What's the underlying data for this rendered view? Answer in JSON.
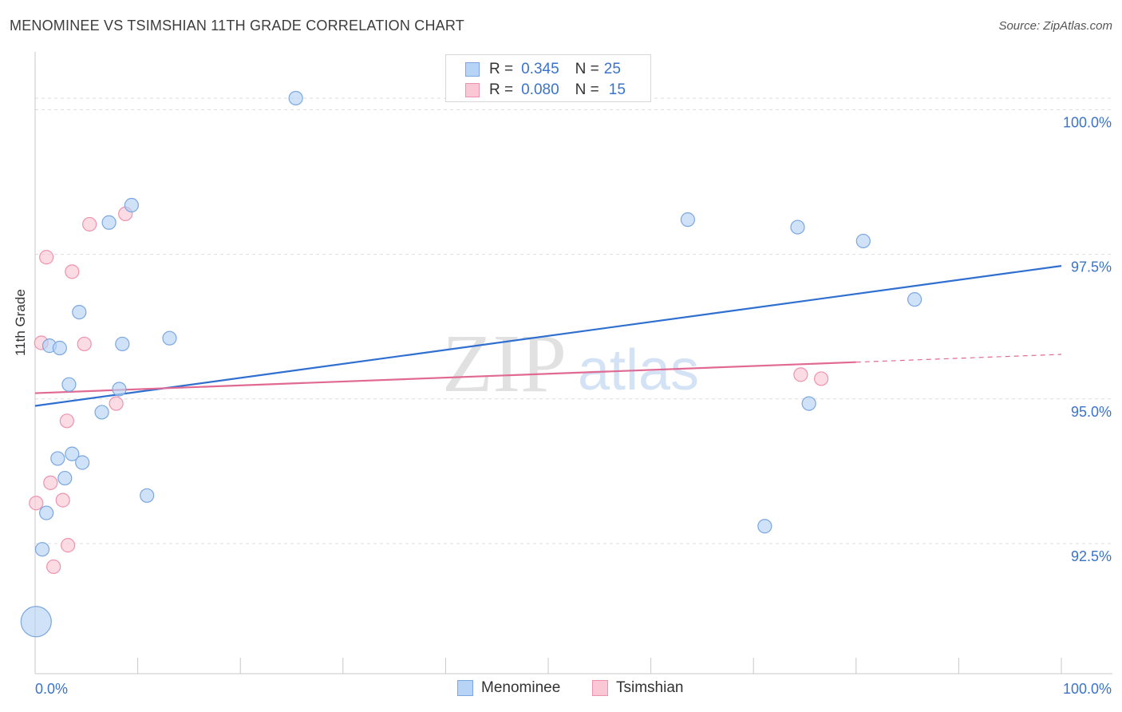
{
  "header": {
    "title": "MENOMINEE VS TSIMSHIAN 11TH GRADE CORRELATION CHART",
    "source": "Source: ZipAtlas.com"
  },
  "watermark": {
    "zip": "ZIP",
    "atlas": "atlas"
  },
  "legend": {
    "rows": [
      {
        "r_label": "R =",
        "r_value": "0.345",
        "n_label": "N =",
        "n_value": "25"
      },
      {
        "r_label": "R =",
        "r_value": "0.080",
        "n_label": "N =",
        "n_value": "15"
      }
    ]
  },
  "bottom_legend": {
    "items": [
      {
        "label": "Menominee"
      },
      {
        "label": "Tsimshian"
      }
    ]
  },
  "colors": {
    "menominee_fill": "#b7d3f5",
    "menominee_stroke": "#7ba7e0",
    "menominee_line": "#2f6fd0",
    "tsimshian_fill": "#f9c7d5",
    "tsimshian_stroke": "#ee93ad",
    "tsimshian_line": "#e06a93",
    "grid": "#dcdcdc",
    "tick_label": "#3b73c9"
  },
  "chart_data": {
    "type": "scatter",
    "title": "MENOMINEE VS TSIMSHIAN 11TH GRADE CORRELATION CHART",
    "xlabel": "",
    "ylabel": "11th Grade",
    "xlim": [
      0,
      100
    ],
    "ylim": [
      90.25,
      101.0
    ],
    "x_tick_labels": [
      {
        "value": 0,
        "label": "0.0%"
      },
      {
        "value": 100,
        "label": "100.0%"
      }
    ],
    "y_ticks": [
      {
        "value": 100.0,
        "label": "100.0%"
      },
      {
        "value": 97.5,
        "label": "97.5%"
      },
      {
        "value": 95.0,
        "label": "95.0%"
      },
      {
        "value": 92.5,
        "label": "92.5%"
      }
    ],
    "series": [
      {
        "name": "Menominee",
        "R": 0.345,
        "N": 25,
        "points": [
          {
            "x": 25.4,
            "y": 100.2
          },
          {
            "x": 9.4,
            "y": 98.35
          },
          {
            "x": 7.2,
            "y": 98.05
          },
          {
            "x": 63.6,
            "y": 98.1
          },
          {
            "x": 74.3,
            "y": 97.97
          },
          {
            "x": 80.7,
            "y": 97.73
          },
          {
            "x": 85.7,
            "y": 96.72
          },
          {
            "x": 4.3,
            "y": 96.5
          },
          {
            "x": 13.1,
            "y": 96.05
          },
          {
            "x": 8.5,
            "y": 95.95
          },
          {
            "x": 1.4,
            "y": 95.92
          },
          {
            "x": 2.4,
            "y": 95.88
          },
          {
            "x": 3.3,
            "y": 95.25
          },
          {
            "x": 8.2,
            "y": 95.17
          },
          {
            "x": 75.4,
            "y": 94.92
          },
          {
            "x": 6.5,
            "y": 94.77
          },
          {
            "x": 3.6,
            "y": 94.05
          },
          {
            "x": 2.2,
            "y": 93.97
          },
          {
            "x": 4.6,
            "y": 93.9
          },
          {
            "x": 2.9,
            "y": 93.63
          },
          {
            "x": 10.9,
            "y": 93.33
          },
          {
            "x": 1.1,
            "y": 93.03
          },
          {
            "x": 71.1,
            "y": 92.8
          },
          {
            "x": 0.7,
            "y": 92.4
          },
          {
            "x": 0.1,
            "y": 91.15,
            "large": true
          }
        ],
        "trend": {
          "x": [
            0,
            100
          ],
          "y": [
            94.88,
            97.3
          ]
        }
      },
      {
        "name": "Tsimshian",
        "R": 0.08,
        "N": 15,
        "points": [
          {
            "x": 8.8,
            "y": 98.2
          },
          {
            "x": 5.3,
            "y": 98.02
          },
          {
            "x": 1.1,
            "y": 97.45
          },
          {
            "x": 3.6,
            "y": 97.2
          },
          {
            "x": 0.6,
            "y": 95.97
          },
          {
            "x": 4.8,
            "y": 95.95
          },
          {
            "x": 7.9,
            "y": 94.92
          },
          {
            "x": 74.6,
            "y": 95.42
          },
          {
            "x": 76.6,
            "y": 95.35
          },
          {
            "x": 3.1,
            "y": 94.62
          },
          {
            "x": 1.5,
            "y": 93.55
          },
          {
            "x": 2.7,
            "y": 93.25
          },
          {
            "x": 0.1,
            "y": 93.2
          },
          {
            "x": 3.2,
            "y": 92.47
          },
          {
            "x": 1.8,
            "y": 92.1
          }
        ],
        "trend": {
          "x": [
            0,
            100
          ],
          "y": [
            95.1,
            95.77
          ],
          "solid_until": 80
        }
      }
    ]
  }
}
